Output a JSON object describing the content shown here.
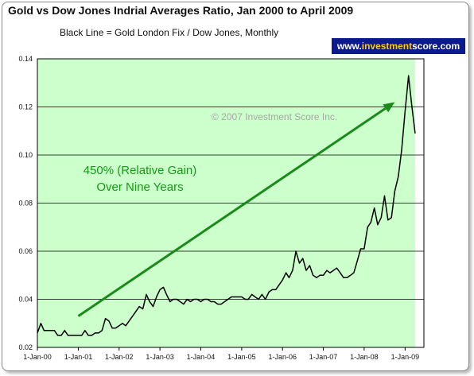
{
  "header": {
    "title": "Gold vs Dow Jones Indrial Averages Ratio, Jan 2000 to April 2009",
    "subtitle": "Black Line = Gold London Fix / Dow Jones, Monthly",
    "brand_prefix": "www.",
    "brand_highlight": "investment",
    "brand_suffix": "score.com"
  },
  "colors": {
    "plot_background": "#ccffcc",
    "line": "#000000",
    "arrow": "#1a8a1a",
    "annotation": "#159a15",
    "brand_background": "#0b1a8c",
    "brand_highlight": "#ffcc00"
  },
  "chart_data": {
    "type": "line",
    "title": "Gold vs Dow Jones Indrial Averages Ratio, Jan 2000 to April 2009",
    "subtitle": "Black Line = Gold London Fix / Dow Jones, Monthly",
    "xlabel": "",
    "ylabel": "",
    "ylim": [
      0.02,
      0.14
    ],
    "yticks": [
      0.02,
      0.04,
      0.06,
      0.08,
      0.1,
      0.12,
      0.14
    ],
    "ytick_labels": [
      "0.02",
      "0.04",
      "0.06",
      "0.08",
      "0.10",
      "0.12",
      "0.14"
    ],
    "xlim": [
      "2000-01-01",
      "2009-04-01"
    ],
    "xticks": [
      "2000-01-01",
      "2001-01-01",
      "2002-01-01",
      "2003-01-01",
      "2004-01-01",
      "2005-01-01",
      "2006-01-01",
      "2007-01-01",
      "2008-01-01",
      "2009-01-01"
    ],
    "xtick_labels": [
      "1-Jan-00",
      "1-Jan-01",
      "1-Jan-02",
      "1-Jan-03",
      "1-Jan-04",
      "1-Jan-05",
      "1-Jan-06",
      "1-Jan-07",
      "1-Jan-08",
      "1-Jan-09"
    ],
    "grid": true,
    "legend": "none",
    "series": [
      {
        "values": [
          [
            "2000-01-01",
            0.026
          ],
          [
            "2000-02-01",
            0.03
          ],
          [
            "2000-03-01",
            0.027
          ],
          [
            "2000-04-01",
            0.027
          ],
          [
            "2000-05-01",
            0.027
          ],
          [
            "2000-06-01",
            0.027
          ],
          [
            "2000-07-01",
            0.025
          ],
          [
            "2000-08-01",
            0.025
          ],
          [
            "2000-09-01",
            0.027
          ],
          [
            "2000-10-01",
            0.025
          ],
          [
            "2000-11-01",
            0.025
          ],
          [
            "2000-12-01",
            0.025
          ],
          [
            "2001-01-01",
            0.025
          ],
          [
            "2001-02-01",
            0.025
          ],
          [
            "2001-03-01",
            0.027
          ],
          [
            "2001-04-01",
            0.025
          ],
          [
            "2001-05-01",
            0.025
          ],
          [
            "2001-06-01",
            0.026
          ],
          [
            "2001-07-01",
            0.026
          ],
          [
            "2001-08-01",
            0.027
          ],
          [
            "2001-09-01",
            0.032
          ],
          [
            "2001-10-01",
            0.031
          ],
          [
            "2001-11-01",
            0.028
          ],
          [
            "2001-12-01",
            0.028
          ],
          [
            "2002-01-01",
            0.029
          ],
          [
            "2002-02-01",
            0.03
          ],
          [
            "2002-03-01",
            0.029
          ],
          [
            "2002-04-01",
            0.031
          ],
          [
            "2002-05-01",
            0.033
          ],
          [
            "2002-06-01",
            0.035
          ],
          [
            "2002-07-01",
            0.037
          ],
          [
            "2002-08-01",
            0.036
          ],
          [
            "2002-09-01",
            0.042
          ],
          [
            "2002-10-01",
            0.039
          ],
          [
            "2002-11-01",
            0.037
          ],
          [
            "2002-12-01",
            0.041
          ],
          [
            "2003-01-01",
            0.044
          ],
          [
            "2003-02-01",
            0.045
          ],
          [
            "2003-03-01",
            0.042
          ],
          [
            "2003-04-01",
            0.039
          ],
          [
            "2003-05-01",
            0.04
          ],
          [
            "2003-06-01",
            0.04
          ],
          [
            "2003-07-01",
            0.039
          ],
          [
            "2003-08-01",
            0.038
          ],
          [
            "2003-09-01",
            0.04
          ],
          [
            "2003-10-01",
            0.039
          ],
          [
            "2003-11-01",
            0.04
          ],
          [
            "2003-12-01",
            0.04
          ],
          [
            "2004-01-01",
            0.039
          ],
          [
            "2004-02-01",
            0.04
          ],
          [
            "2004-03-01",
            0.04
          ],
          [
            "2004-04-01",
            0.039
          ],
          [
            "2004-05-01",
            0.039
          ],
          [
            "2004-06-01",
            0.038
          ],
          [
            "2004-07-01",
            0.038
          ],
          [
            "2004-08-01",
            0.039
          ],
          [
            "2004-09-01",
            0.04
          ],
          [
            "2004-10-01",
            0.041
          ],
          [
            "2004-11-01",
            0.041
          ],
          [
            "2004-12-01",
            0.041
          ],
          [
            "2005-01-01",
            0.041
          ],
          [
            "2005-02-01",
            0.04
          ],
          [
            "2005-03-01",
            0.04
          ],
          [
            "2005-04-01",
            0.042
          ],
          [
            "2005-05-01",
            0.041
          ],
          [
            "2005-06-01",
            0.04
          ],
          [
            "2005-07-01",
            0.042
          ],
          [
            "2005-08-01",
            0.04
          ],
          [
            "2005-09-01",
            0.043
          ],
          [
            "2005-10-01",
            0.044
          ],
          [
            "2005-11-01",
            0.044
          ],
          [
            "2005-12-01",
            0.046
          ],
          [
            "2006-01-01",
            0.048
          ],
          [
            "2006-02-01",
            0.051
          ],
          [
            "2006-03-01",
            0.049
          ],
          [
            "2006-04-01",
            0.052
          ],
          [
            "2006-05-01",
            0.06
          ],
          [
            "2006-06-01",
            0.055
          ],
          [
            "2006-07-01",
            0.057
          ],
          [
            "2006-08-01",
            0.052
          ],
          [
            "2006-09-01",
            0.054
          ],
          [
            "2006-10-01",
            0.05
          ],
          [
            "2006-11-01",
            0.049
          ],
          [
            "2006-12-01",
            0.05
          ],
          [
            "2007-01-01",
            0.05
          ],
          [
            "2007-02-01",
            0.052
          ],
          [
            "2007-03-01",
            0.051
          ],
          [
            "2007-04-01",
            0.052
          ],
          [
            "2007-05-01",
            0.053
          ],
          [
            "2007-06-01",
            0.051
          ],
          [
            "2007-07-01",
            0.049
          ],
          [
            "2007-08-01",
            0.049
          ],
          [
            "2007-09-01",
            0.05
          ],
          [
            "2007-10-01",
            0.051
          ],
          [
            "2007-11-01",
            0.056
          ],
          [
            "2007-12-01",
            0.061
          ],
          [
            "2008-01-01",
            0.061
          ],
          [
            "2008-02-01",
            0.07
          ],
          [
            "2008-03-01",
            0.072
          ],
          [
            "2008-04-01",
            0.078
          ],
          [
            "2008-05-01",
            0.071
          ],
          [
            "2008-06-01",
            0.074
          ],
          [
            "2008-07-01",
            0.083
          ],
          [
            "2008-08-01",
            0.073
          ],
          [
            "2008-09-01",
            0.074
          ],
          [
            "2008-10-01",
            0.085
          ],
          [
            "2008-11-01",
            0.091
          ],
          [
            "2008-12-01",
            0.102
          ],
          [
            "2009-01-01",
            0.118
          ],
          [
            "2009-02-01",
            0.133
          ],
          [
            "2009-03-01",
            0.121
          ],
          [
            "2009-04-01",
            0.109
          ]
        ]
      }
    ],
    "annotations": [
      {
        "text_line1": "450% (Relative Gain)",
        "text_line2": "Over Nine Years"
      },
      {
        "text": "© 2007 Investment Score Inc."
      }
    ],
    "arrow": {
      "from": [
        "2001-01-01",
        0.033
      ],
      "to": [
        "2008-10-01",
        0.122
      ]
    }
  }
}
